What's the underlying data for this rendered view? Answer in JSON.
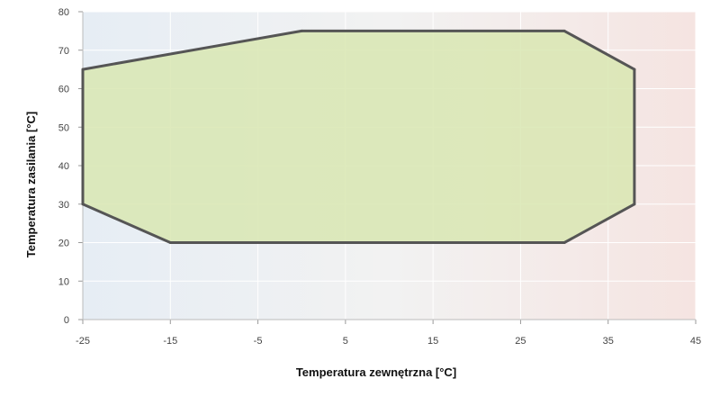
{
  "chart_data": {
    "type": "area",
    "title": "",
    "xlabel": "Temperatura zewnętrzna [°C]",
    "ylabel": "Temperatura zasilania [°C]",
    "xlim": [
      -25,
      45
    ],
    "ylim": [
      0,
      80
    ],
    "x_ticks": [
      -25,
      -15,
      -5,
      5,
      15,
      25,
      35,
      45
    ],
    "y_ticks": [
      0,
      10,
      20,
      30,
      40,
      50,
      60,
      70,
      80
    ],
    "grid": true,
    "background_gradient": {
      "cold": "#e6edf4",
      "mid": "#f2f2f2",
      "warm": "#f5e4e1"
    },
    "series": [
      {
        "fill_color": "#d8e6b2",
        "line_color": "#555555",
        "x": [
          -25,
          0,
          30,
          38,
          38,
          30,
          -15,
          -25,
          -25
        ],
        "y": [
          65,
          75,
          75,
          65,
          30,
          20,
          20,
          30,
          65
        ]
      }
    ]
  }
}
